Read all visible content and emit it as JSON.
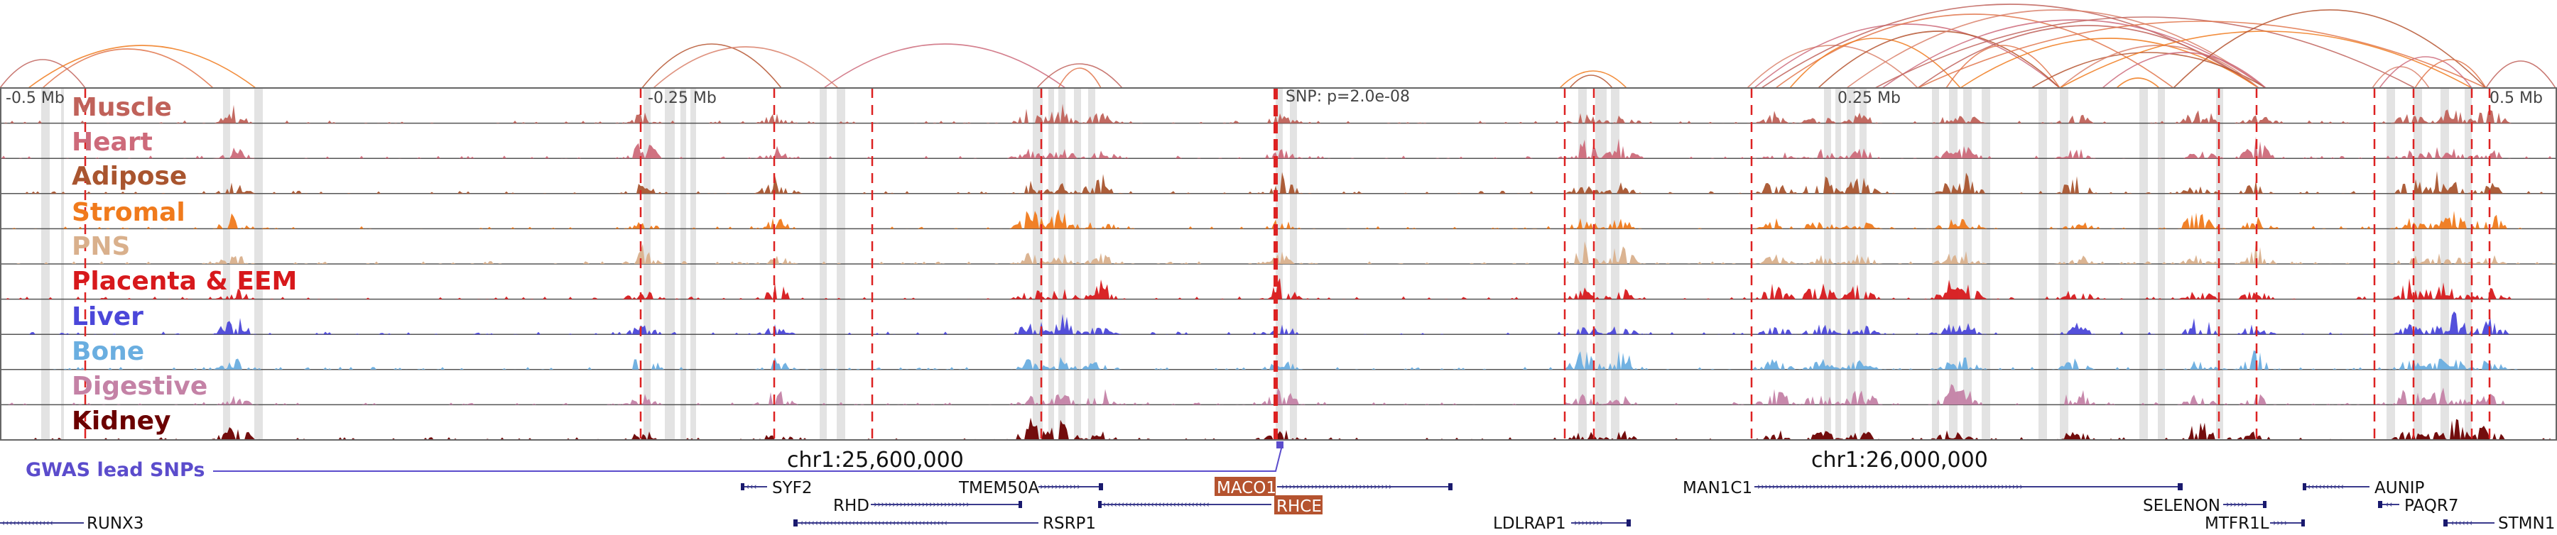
{
  "scale": {
    "ticks": [
      "-0.5 Mb",
      "-0.25 Mb",
      "SNP: p=2.0e-08",
      "0.25 Mb",
      "0.5 Mb"
    ]
  },
  "tracks": [
    {
      "label": "Muscle",
      "color": "#c0625a"
    },
    {
      "label": "Heart",
      "color": "#cd6a7a"
    },
    {
      "label": "Adipose",
      "color": "#a9552f"
    },
    {
      "label": "Stromal",
      "color": "#f07a1c"
    },
    {
      "label": "PNS",
      "color": "#d9b08c"
    },
    {
      "label": "Placenta & EEM",
      "color": "#d7191c"
    },
    {
      "label": "Liver",
      "color": "#4b47d9"
    },
    {
      "label": "Bone",
      "color": "#6aaee0"
    },
    {
      "label": "Digestive",
      "color": "#c482a6"
    },
    {
      "label": "Kidney",
      "color": "#6b0000"
    }
  ],
  "coords": {
    "left": "chr1:25,600,000",
    "right": "chr1:26,000,000"
  },
  "gwas": {
    "label": "GWAS lead SNPs",
    "color": "#5b4ccc"
  },
  "genes": [
    {
      "name": "SYF2",
      "highlight": false
    },
    {
      "name": "TMEM50A",
      "highlight": false
    },
    {
      "name": "MACO1",
      "highlight": true
    },
    {
      "name": "RHD",
      "highlight": false
    },
    {
      "name": "RHCE",
      "highlight": true
    },
    {
      "name": "MAN1C1",
      "highlight": false
    },
    {
      "name": "SELENON",
      "highlight": false
    },
    {
      "name": "AUNIP",
      "highlight": false
    },
    {
      "name": "PAQR7",
      "highlight": false
    },
    {
      "name": "RUNX3",
      "highlight": false
    },
    {
      "name": "RSRP1",
      "highlight": false
    },
    {
      "name": "LDLRAP1",
      "highlight": false
    },
    {
      "name": "MTFR1L",
      "highlight": false
    },
    {
      "name": "STMN1",
      "highlight": false
    }
  ],
  "colors": {
    "frame": "#666666",
    "peak_line": "#dd2222",
    "highlight_fill": "#b5532f",
    "gene_strand": "#3a3a8c"
  }
}
